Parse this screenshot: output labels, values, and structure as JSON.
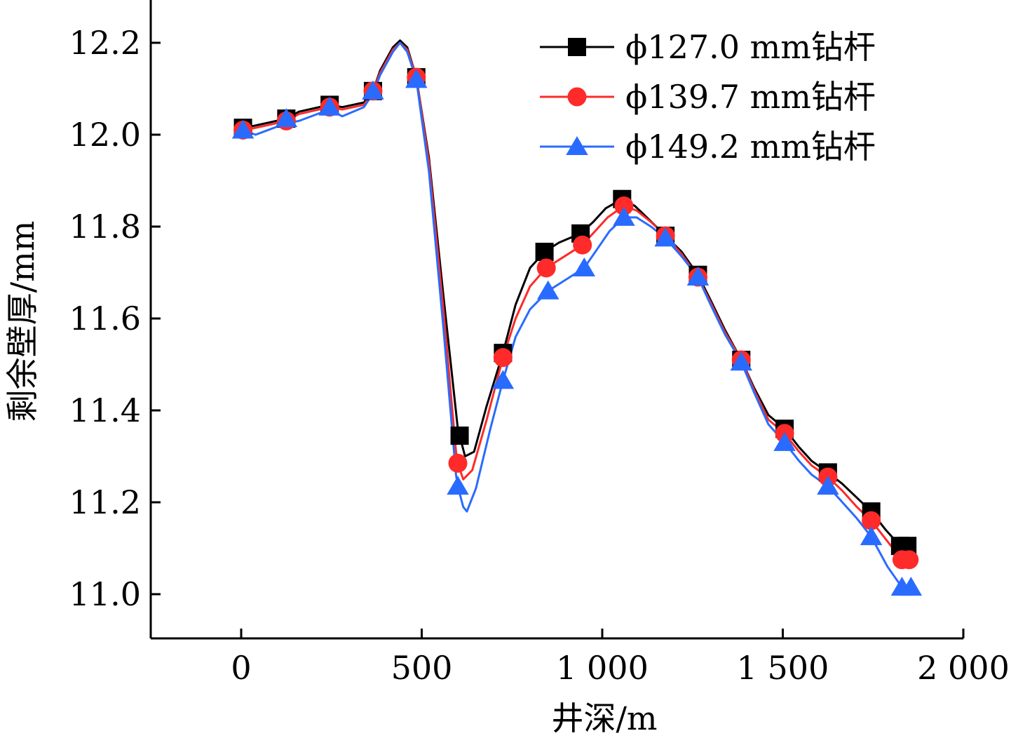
{
  "chart_data": {
    "type": "line",
    "title": "",
    "xlabel": "井深/m",
    "ylabel": "剩余壁厚/mm",
    "xlim": [
      -250,
      2000
    ],
    "ylim": [
      10.9,
      12.3
    ],
    "x_ticks": [
      0,
      500,
      1000,
      1500,
      2000
    ],
    "x_tick_labels": [
      "0",
      "500",
      "1 000",
      "1 500",
      "2 000"
    ],
    "y_ticks": [
      11.0,
      11.2,
      11.4,
      11.6,
      11.8,
      12.0,
      12.2
    ],
    "y_tick_labels": [
      "11.0",
      "11.2",
      "11.4",
      "11.6",
      "11.8",
      "12.0",
      "12.2"
    ],
    "legend_position": "top-right",
    "series": [
      {
        "name": "ϕ127.0 mm钻杆",
        "color": "#000000",
        "marker": "square",
        "x": [
          5,
          125,
          245,
          365,
          485,
          605,
          725,
          840,
          940,
          1055,
          1175,
          1265,
          1385,
          1505,
          1625,
          1745,
          1825,
          1845
        ],
        "y": [
          12.015,
          12.035,
          12.065,
          12.095,
          12.125,
          11.345,
          11.525,
          11.745,
          11.785,
          11.86,
          11.78,
          11.695,
          11.51,
          11.36,
          11.265,
          11.18,
          11.105,
          11.105
        ],
        "line_x": [
          5,
          40,
          125,
          160,
          245,
          280,
          340,
          365,
          385,
          420,
          440,
          460,
          485,
          520,
          560,
          600,
          605,
          620,
          645,
          680,
          725,
          760,
          800,
          840,
          880,
          940,
          975,
          1010,
          1055,
          1090,
          1130,
          1175,
          1220,
          1265,
          1300,
          1340,
          1385,
          1420,
          1460,
          1505,
          1545,
          1580,
          1625,
          1665,
          1705,
          1745,
          1785,
          1825,
          1845
        ],
        "line_y": [
          12.015,
          12.02,
          12.035,
          12.05,
          12.065,
          12.06,
          12.07,
          12.095,
          12.14,
          12.19,
          12.205,
          12.19,
          12.125,
          11.95,
          11.65,
          11.36,
          11.345,
          11.3,
          11.31,
          11.41,
          11.525,
          11.63,
          11.71,
          11.745,
          11.765,
          11.785,
          11.81,
          11.84,
          11.86,
          11.845,
          11.815,
          11.78,
          11.745,
          11.695,
          11.64,
          11.575,
          11.51,
          11.45,
          11.39,
          11.36,
          11.32,
          11.29,
          11.265,
          11.24,
          11.21,
          11.18,
          11.14,
          11.105,
          11.105
        ]
      },
      {
        "name": "ϕ139.7 mm钻杆",
        "color": "#ff2a2a",
        "marker": "circle",
        "x": [
          5,
          125,
          245,
          365,
          485,
          600,
          725,
          845,
          945,
          1060,
          1175,
          1265,
          1385,
          1505,
          1625,
          1745,
          1830,
          1850
        ],
        "y": [
          12.01,
          12.03,
          12.06,
          12.095,
          12.125,
          11.285,
          11.515,
          11.71,
          11.76,
          11.845,
          11.78,
          11.69,
          11.51,
          11.35,
          11.255,
          11.16,
          11.075,
          11.075
        ],
        "line_x": [
          5,
          40,
          125,
          160,
          245,
          280,
          340,
          365,
          385,
          420,
          440,
          460,
          485,
          520,
          560,
          595,
          600,
          615,
          640,
          680,
          725,
          760,
          800,
          845,
          885,
          945,
          980,
          1015,
          1060,
          1095,
          1135,
          1175,
          1220,
          1265,
          1300,
          1340,
          1385,
          1420,
          1460,
          1505,
          1545,
          1580,
          1625,
          1665,
          1705,
          1745,
          1790,
          1830,
          1850
        ],
        "line_y": [
          12.01,
          12.015,
          12.03,
          12.045,
          12.06,
          12.055,
          12.065,
          12.095,
          12.135,
          12.185,
          12.2,
          12.185,
          12.125,
          11.94,
          11.62,
          11.31,
          11.285,
          11.25,
          11.27,
          11.38,
          11.515,
          11.6,
          11.67,
          11.71,
          11.73,
          11.76,
          11.79,
          11.82,
          11.845,
          11.835,
          11.81,
          11.78,
          11.74,
          11.69,
          11.635,
          11.57,
          11.51,
          11.445,
          11.38,
          11.35,
          11.31,
          11.28,
          11.255,
          11.225,
          11.19,
          11.16,
          11.115,
          11.075,
          11.075
        ]
      },
      {
        "name": "ϕ149.2 mm钻杆",
        "color": "#2a6bff",
        "marker": "triangle",
        "x": [
          5,
          125,
          245,
          365,
          485,
          600,
          725,
          850,
          950,
          1060,
          1175,
          1265,
          1385,
          1505,
          1625,
          1745,
          1830,
          1855
        ],
        "y": [
          12.01,
          12.035,
          12.06,
          12.095,
          12.12,
          11.235,
          11.465,
          11.66,
          11.71,
          11.82,
          11.775,
          11.69,
          11.505,
          11.33,
          11.235,
          11.125,
          11.015,
          11.015
        ],
        "line_x": [
          5,
          40,
          125,
          160,
          245,
          280,
          340,
          365,
          385,
          420,
          440,
          460,
          485,
          520,
          560,
          595,
          600,
          615,
          625,
          650,
          690,
          725,
          760,
          800,
          850,
          890,
          950,
          985,
          1020,
          1060,
          1095,
          1135,
          1175,
          1220,
          1265,
          1300,
          1340,
          1385,
          1420,
          1460,
          1505,
          1545,
          1580,
          1625,
          1665,
          1705,
          1745,
          1790,
          1830,
          1855
        ],
        "line_y": [
          12.01,
          12.0,
          12.025,
          12.03,
          12.055,
          12.04,
          12.06,
          12.09,
          12.13,
          12.18,
          12.2,
          12.18,
          12.12,
          11.92,
          11.58,
          11.26,
          11.235,
          11.19,
          11.18,
          11.23,
          11.36,
          11.465,
          11.56,
          11.62,
          11.66,
          11.68,
          11.71,
          11.75,
          11.79,
          11.82,
          11.82,
          11.8,
          11.775,
          11.735,
          11.69,
          11.63,
          11.565,
          11.505,
          11.44,
          11.37,
          11.33,
          11.29,
          11.26,
          11.235,
          11.2,
          11.165,
          11.125,
          11.06,
          11.015,
          11.015
        ]
      }
    ]
  }
}
